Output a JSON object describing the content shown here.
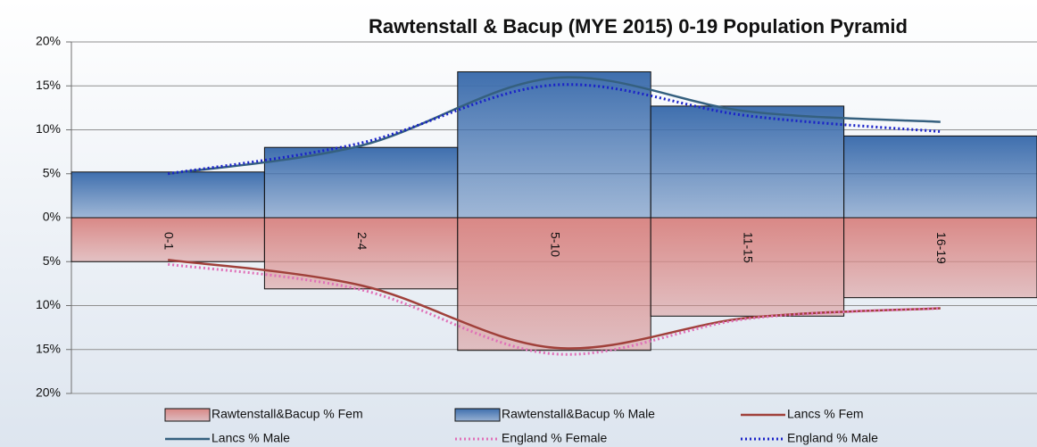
{
  "chart_data": {
    "type": "bar",
    "title": "Rawtenstall & Bacup (MYE 2015) 0-19 Population Pyramid",
    "categories": [
      "0-1",
      "2-4",
      "5-10",
      "11-15",
      "16-19"
    ],
    "ylim": [
      -20,
      20
    ],
    "yticks": [
      {
        "value": 20,
        "label": "20%"
      },
      {
        "value": 15,
        "label": "15%"
      },
      {
        "value": 10,
        "label": "10%"
      },
      {
        "value": 5,
        "label": "5%"
      },
      {
        "value": 0,
        "label": "0%"
      },
      {
        "value": -5,
        "label": "5%"
      },
      {
        "value": -10,
        "label": "10%"
      },
      {
        "value": -15,
        "label": "15%"
      },
      {
        "value": -20,
        "label": "20%"
      }
    ],
    "grid": true,
    "legend": "bottom",
    "series": [
      {
        "name": "Rawtenstall&Bacup % Fem",
        "type": "bar",
        "color": "#d98886",
        "values": [
          -5.0,
          -8.1,
          -15.1,
          -11.2,
          -9.1
        ]
      },
      {
        "name": "Rawtenstall&Bacup % Male",
        "type": "bar",
        "color": "#3f6fae",
        "values": [
          5.2,
          8.0,
          16.6,
          12.7,
          9.3
        ]
      },
      {
        "name": "Lancs % Fem",
        "type": "line",
        "style": "solid",
        "color": "#a0403a",
        "values": [
          -4.8,
          -7.7,
          -14.8,
          -11.4,
          -10.3
        ]
      },
      {
        "name": "Lancs % Male",
        "type": "line",
        "style": "solid",
        "color": "#35607f",
        "values": [
          5.0,
          8.2,
          15.9,
          12.1,
          10.9
        ]
      },
      {
        "name": "England % Female",
        "type": "line",
        "style": "dotted",
        "color": "#e070b8",
        "values": [
          -5.3,
          -8.2,
          -15.5,
          -11.5,
          -10.3
        ]
      },
      {
        "name": "England % Male",
        "type": "line",
        "style": "dotted",
        "color": "#1a22c8",
        "values": [
          5.0,
          8.5,
          15.1,
          11.6,
          9.8
        ]
      }
    ]
  }
}
